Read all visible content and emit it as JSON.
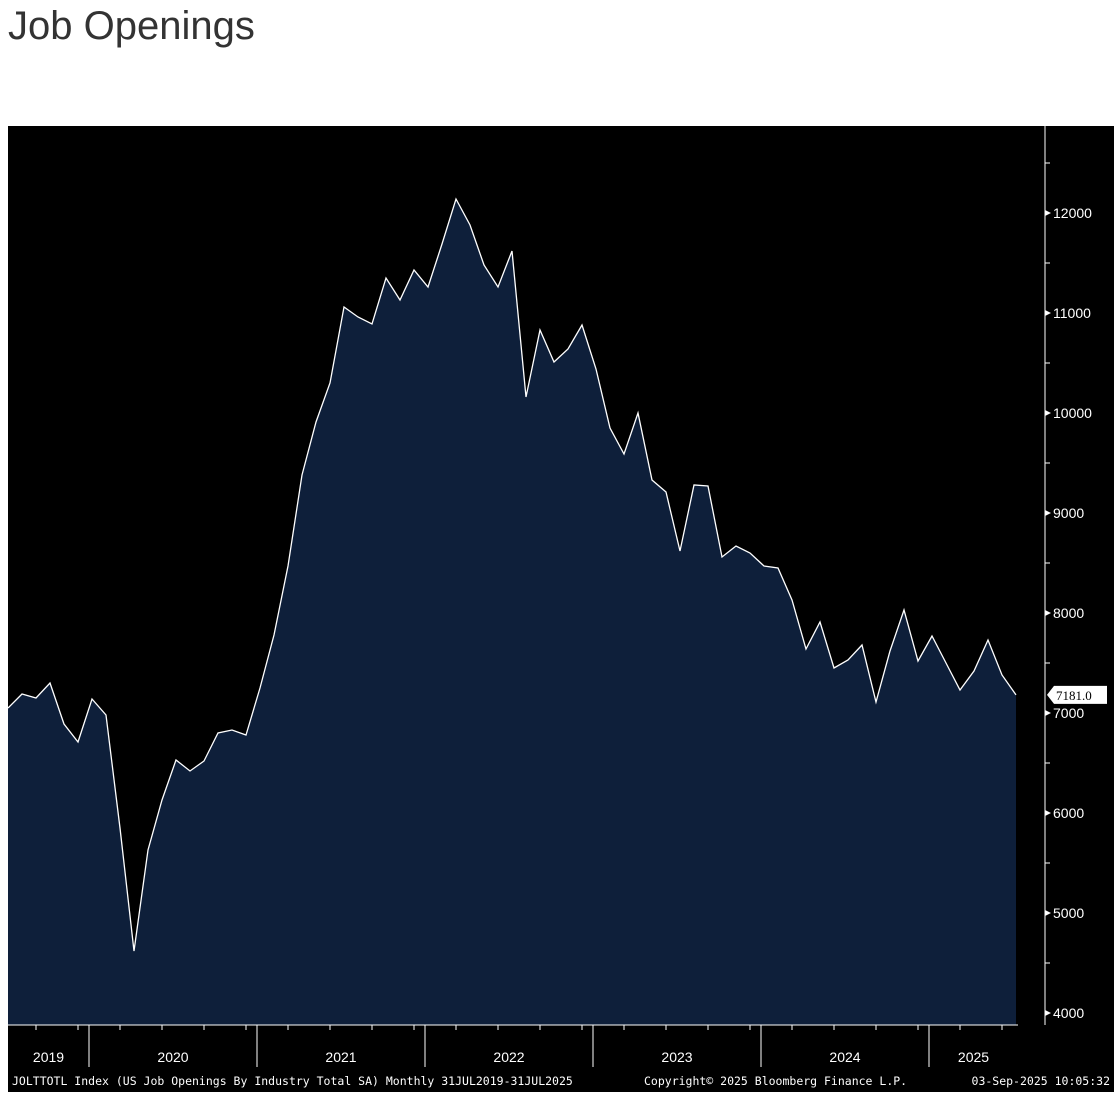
{
  "page": {
    "title": "Job Openings"
  },
  "footer": {
    "ticker_text": "JOLTTOTL Index (US Job Openings By Industry Total SA)  Monthly 31JUL2019-31JUL2025",
    "copyright": "Copyright© 2025 Bloomberg Finance L.P.",
    "timestamp": "03-Sep-2025 10:05:32"
  },
  "chart_data": {
    "type": "area",
    "title": "",
    "xlabel": "",
    "ylabel": "",
    "ylim": [
      4000,
      12500
    ],
    "xlim": [
      "2019-07",
      "2025-07"
    ],
    "y_ticks": [
      4000,
      5000,
      6000,
      7000,
      8000,
      9000,
      10000,
      11000,
      12000
    ],
    "year_labels": [
      "2019",
      "2020",
      "2021",
      "2022",
      "2023",
      "2024",
      "2025"
    ],
    "last_value_label": "7181.0",
    "colors": {
      "fill": "#0e1f3a",
      "line": "#ffffff",
      "background": "#000000",
      "last_label_bg": "#ffffff"
    },
    "grid": false,
    "series": [
      {
        "x": [
          "2019-07",
          "2019-08",
          "2019-09",
          "2019-10",
          "2019-11",
          "2019-12",
          "2020-01",
          "2020-02",
          "2020-03",
          "2020-04",
          "2020-05",
          "2020-06",
          "2020-07",
          "2020-08",
          "2020-09",
          "2020-10",
          "2020-11",
          "2020-12",
          "2021-01",
          "2021-02",
          "2021-03",
          "2021-04",
          "2021-05",
          "2021-06",
          "2021-07",
          "2021-08",
          "2021-09",
          "2021-10",
          "2021-11",
          "2021-12",
          "2022-01",
          "2022-02",
          "2022-03",
          "2022-04",
          "2022-05",
          "2022-06",
          "2022-07",
          "2022-08",
          "2022-09",
          "2022-10",
          "2022-11",
          "2022-12",
          "2023-01",
          "2023-02",
          "2023-03",
          "2023-04",
          "2023-05",
          "2023-06",
          "2023-07",
          "2023-08",
          "2023-09",
          "2023-10",
          "2023-11",
          "2023-12",
          "2024-01",
          "2024-02",
          "2024-03",
          "2024-04",
          "2024-05",
          "2024-06",
          "2024-07",
          "2024-08",
          "2024-09",
          "2024-10",
          "2024-11",
          "2024-12",
          "2025-01",
          "2025-02",
          "2025-03",
          "2025-04",
          "2025-05",
          "2025-06",
          "2025-07"
        ],
        "values": [
          7050,
          7190,
          7150,
          7300,
          6890,
          6710,
          7140,
          6980,
          5850,
          4620,
          5630,
          6130,
          6530,
          6420,
          6520,
          6800,
          6830,
          6780,
          7250,
          7780,
          8470,
          9380,
          9910,
          10300,
          11060,
          10960,
          10890,
          11350,
          11130,
          11430,
          11260,
          11690,
          12140,
          11880,
          11480,
          11260,
          11620,
          10160,
          10830,
          10510,
          10640,
          10880,
          10440,
          9850,
          9590,
          10000,
          9330,
          9210,
          8620,
          9280,
          9270,
          8560,
          8670,
          8600,
          8470,
          8450,
          8130,
          7640,
          7910,
          7450,
          7530,
          7680,
          7110,
          7620,
          8030,
          7520,
          7770,
          7500,
          7230,
          7420,
          7730,
          7380,
          7181
        ]
      }
    ]
  }
}
